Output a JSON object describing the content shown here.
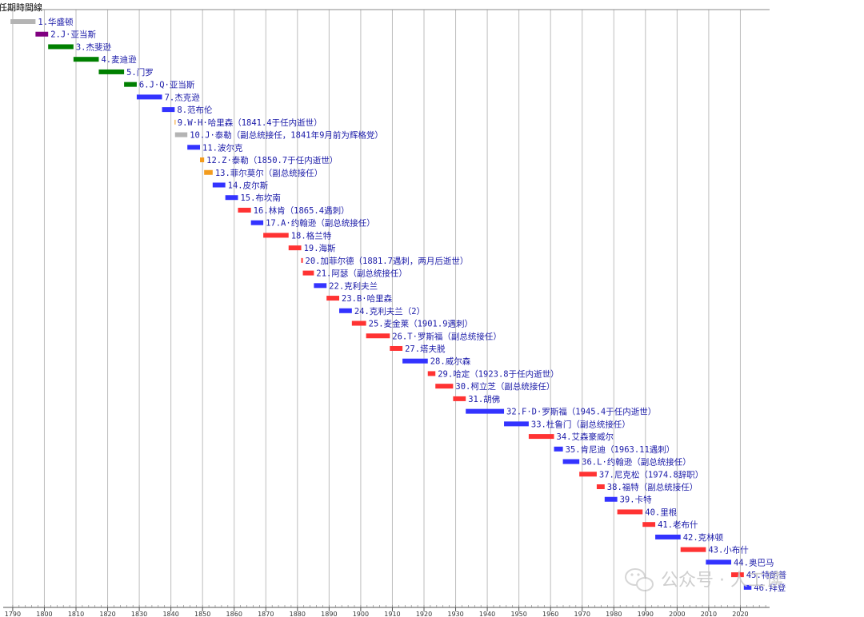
{
  "chart_data": {
    "type": "bar",
    "orientation": "horizontal-timeline",
    "title": "任期時間線",
    "xlim": [
      1788,
      2030
    ],
    "x_ticks": [
      1790,
      1800,
      1810,
      1820,
      1830,
      1840,
      1850,
      1860,
      1870,
      1880,
      1890,
      1900,
      1910,
      1920,
      1930,
      1940,
      1950,
      1960,
      1970,
      1980,
      1990,
      2000,
      2010,
      2020
    ],
    "grid": true,
    "legend": "none",
    "party_colors": {
      "none": "#b4b4b4",
      "federalist": "#800080",
      "democratic_republican": "#008000",
      "democratic": "#3333ff",
      "whig": "#f39c1e",
      "republican": "#ff3333"
    },
    "terms": [
      {
        "label": "1.华盛顿",
        "start": 1789.3,
        "end": 1797.2,
        "party": "none"
      },
      {
        "label": "2.J·亚当斯",
        "start": 1797.2,
        "end": 1801.2,
        "party": "federalist"
      },
      {
        "label": "3.杰斐逊",
        "start": 1801.2,
        "end": 1809.2,
        "party": "democratic_republican"
      },
      {
        "label": "4.麦迪逊",
        "start": 1809.2,
        "end": 1817.2,
        "party": "democratic_republican"
      },
      {
        "label": "5.门罗",
        "start": 1817.2,
        "end": 1825.2,
        "party": "democratic_republican"
      },
      {
        "label": "6.J·Q·亚当斯",
        "start": 1825.2,
        "end": 1829.2,
        "party": "democratic_republican"
      },
      {
        "label": "7.杰克逊",
        "start": 1829.2,
        "end": 1837.2,
        "party": "democratic"
      },
      {
        "label": "8.范布伦",
        "start": 1837.2,
        "end": 1841.2,
        "party": "democratic"
      },
      {
        "label": "9.W·H·哈里森（1841.4于任内逝世）",
        "start": 1841.2,
        "end": 1841.3,
        "party": "whig"
      },
      {
        "label": "10.J·泰勒（副总统接任，1841年9月前为辉格党）",
        "start": 1841.3,
        "end": 1845.2,
        "party": "none"
      },
      {
        "label": "11.波尔克",
        "start": 1845.2,
        "end": 1849.2,
        "party": "democratic"
      },
      {
        "label": "12.Z·泰勒（1850.7于任内逝世）",
        "start": 1849.2,
        "end": 1850.5,
        "party": "whig"
      },
      {
        "label": "13.菲尔莫尔（副总统接任）",
        "start": 1850.5,
        "end": 1853.2,
        "party": "whig"
      },
      {
        "label": "14.皮尔斯",
        "start": 1853.2,
        "end": 1857.2,
        "party": "democratic"
      },
      {
        "label": "15.布坎南",
        "start": 1857.2,
        "end": 1861.2,
        "party": "democratic"
      },
      {
        "label": "16.林肯（1865.4遇刺）",
        "start": 1861.2,
        "end": 1865.3,
        "party": "republican"
      },
      {
        "label": "17.A·约翰逊（副总统接任）",
        "start": 1865.3,
        "end": 1869.2,
        "party": "democratic"
      },
      {
        "label": "18.格兰特",
        "start": 1869.2,
        "end": 1877.2,
        "party": "republican"
      },
      {
        "label": "19.海斯",
        "start": 1877.2,
        "end": 1881.2,
        "party": "republican"
      },
      {
        "label": "20.加菲尔德（1881.7遇刺，两月后逝世）",
        "start": 1881.2,
        "end": 1881.7,
        "party": "republican"
      },
      {
        "label": "21.阿瑟（副总统接任）",
        "start": 1881.7,
        "end": 1885.2,
        "party": "republican"
      },
      {
        "label": "22.克利夫兰",
        "start": 1885.2,
        "end": 1889.2,
        "party": "democratic"
      },
      {
        "label": "23.B·哈里森",
        "start": 1889.2,
        "end": 1893.2,
        "party": "republican"
      },
      {
        "label": "24.克利夫兰（2）",
        "start": 1893.2,
        "end": 1897.2,
        "party": "democratic"
      },
      {
        "label": "25.麦金莱（1901.9遇刺）",
        "start": 1897.2,
        "end": 1901.7,
        "party": "republican"
      },
      {
        "label": "26.T·罗斯福（副总统接任）",
        "start": 1901.7,
        "end": 1909.2,
        "party": "republican"
      },
      {
        "label": "27.塔夫脱",
        "start": 1909.2,
        "end": 1913.2,
        "party": "republican"
      },
      {
        "label": "28.威尔森",
        "start": 1913.2,
        "end": 1921.2,
        "party": "democratic"
      },
      {
        "label": "29.哈定（1923.8于任内逝世）",
        "start": 1921.2,
        "end": 1923.6,
        "party": "republican"
      },
      {
        "label": "30.柯立芝（副总统接任）",
        "start": 1923.6,
        "end": 1929.2,
        "party": "republican"
      },
      {
        "label": "31.胡佛",
        "start": 1929.2,
        "end": 1933.2,
        "party": "republican"
      },
      {
        "label": "32.F·D·罗斯福（1945.4于任内逝世）",
        "start": 1933.2,
        "end": 1945.3,
        "party": "democratic"
      },
      {
        "label": "33.杜鲁门（副总统接任）",
        "start": 1945.3,
        "end": 1953.1,
        "party": "democratic"
      },
      {
        "label": "34.艾森豪威尔",
        "start": 1953.1,
        "end": 1961.1,
        "party": "republican"
      },
      {
        "label": "35.肯尼迪（1963.11遇刺）",
        "start": 1961.1,
        "end": 1963.9,
        "party": "democratic"
      },
      {
        "label": "36.L·约翰逊（副总统接任）",
        "start": 1963.9,
        "end": 1969.1,
        "party": "democratic"
      },
      {
        "label": "37.尼克松（1974.8辞职）",
        "start": 1969.1,
        "end": 1974.6,
        "party": "republican"
      },
      {
        "label": "38.福特（副总统接任）",
        "start": 1974.6,
        "end": 1977.1,
        "party": "republican"
      },
      {
        "label": "39.卡特",
        "start": 1977.1,
        "end": 1981.1,
        "party": "democratic"
      },
      {
        "label": "40.里根",
        "start": 1981.1,
        "end": 1989.1,
        "party": "republican"
      },
      {
        "label": "41.老布什",
        "start": 1989.1,
        "end": 1993.1,
        "party": "republican"
      },
      {
        "label": "42.克林顿",
        "start": 1993.1,
        "end": 2001.1,
        "party": "democratic"
      },
      {
        "label": "43.小布什",
        "start": 2001.1,
        "end": 2009.1,
        "party": "republican"
      },
      {
        "label": "44.奥巴马",
        "start": 2009.1,
        "end": 2017.1,
        "party": "democratic"
      },
      {
        "label": "45.特朗普",
        "start": 2017.1,
        "end": 2021.1,
        "party": "republican"
      },
      {
        "label": "46.拜登",
        "start": 2021.1,
        "end": 2023.5,
        "party": "democratic"
      }
    ]
  },
  "watermark": {
    "text": "公众号 · 人工读"
  }
}
